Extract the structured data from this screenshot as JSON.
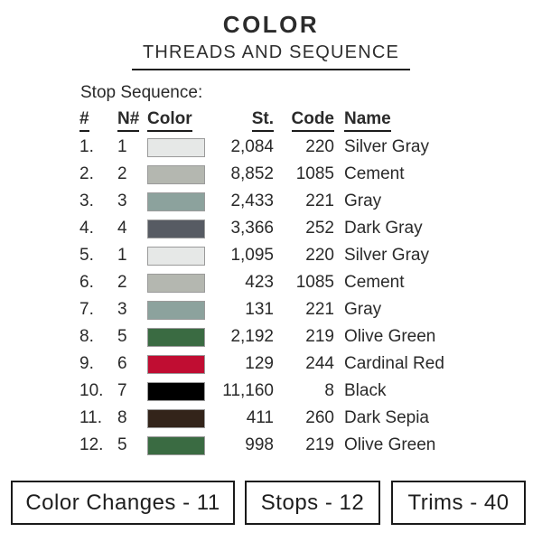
{
  "header": {
    "title": "COLOR",
    "subtitle": "THREADS AND SEQUENCE"
  },
  "section_label": "Stop Sequence:",
  "table": {
    "columns": {
      "num": "#",
      "n": "N#",
      "color": "Color",
      "st": "St.",
      "code": "Code",
      "name": "Name"
    },
    "rows": [
      {
        "num": "1.",
        "n": "1",
        "color": "#E6E8E7",
        "st": "2,084",
        "code": "220",
        "name": "Silver Gray"
      },
      {
        "num": "2.",
        "n": "2",
        "color": "#B4B7B0",
        "st": "8,852",
        "code": "1085",
        "name": "Cement"
      },
      {
        "num": "3.",
        "n": "3",
        "color": "#8CA29D",
        "st": "2,433",
        "code": "221",
        "name": "Gray"
      },
      {
        "num": "4.",
        "n": "4",
        "color": "#575B63",
        "st": "3,366",
        "code": "252",
        "name": "Dark Gray"
      },
      {
        "num": "5.",
        "n": "1",
        "color": "#E6E8E7",
        "st": "1,095",
        "code": "220",
        "name": "Silver Gray"
      },
      {
        "num": "6.",
        "n": "2",
        "color": "#B4B7B0",
        "st": "423",
        "code": "1085",
        "name": "Cement"
      },
      {
        "num": "7.",
        "n": "3",
        "color": "#8CA29D",
        "st": "131",
        "code": "221",
        "name": "Gray"
      },
      {
        "num": "8.",
        "n": "5",
        "color": "#3A6B42",
        "st": "2,192",
        "code": "219",
        "name": "Olive Green"
      },
      {
        "num": "9.",
        "n": "6",
        "color": "#C00D32",
        "st": "129",
        "code": "244",
        "name": "Cardinal Red"
      },
      {
        "num": "10.",
        "n": "7",
        "color": "#000000",
        "st": "11,160",
        "code": "8",
        "name": "Black"
      },
      {
        "num": "11.",
        "n": "8",
        "color": "#33241A",
        "st": "411",
        "code": "260",
        "name": "Dark Sepia"
      },
      {
        "num": "12.",
        "n": "5",
        "color": "#3A6B42",
        "st": "998",
        "code": "219",
        "name": "Olive Green"
      }
    ]
  },
  "summary": {
    "color_changes": "Color Changes - 11",
    "stops": "Stops - 12",
    "trims": "Trims - 40"
  }
}
